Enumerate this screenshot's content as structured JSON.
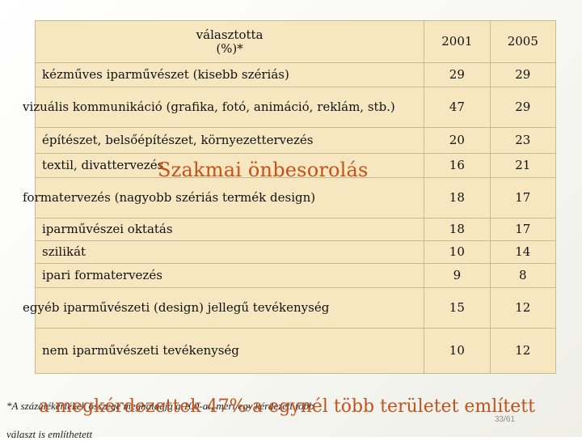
{
  "table": {
    "header": {
      "label_line1": "választotta",
      "label_line2": "(%)*",
      "col1": "2001",
      "col2": "2005"
    },
    "rows": [
      {
        "label": "kézműves iparművészet (kisebb szériás)",
        "v2001": "29",
        "v2005": "29"
      },
      {
        "label": "vizuális kommunikáció (grafika, fotó, animáció, reklám, stb.)",
        "v2001": "47",
        "v2005": "29"
      },
      {
        "label": "építészet, belsőépítészet, környezettervezés",
        "v2001": "20",
        "v2005": "23"
      },
      {
        "label": "textil, divattervezés",
        "v2001": "16",
        "v2005": "21"
      },
      {
        "label": "formatervezés (nagyobb szériás termék design)",
        "v2001": "18",
        "v2005": "17"
      },
      {
        "label": "iparművészei oktatás",
        "v2001": "18",
        "v2005": "17"
      },
      {
        "label": "szilikát",
        "v2001": "10",
        "v2005": "14"
      },
      {
        "label": "ipari formatervezés",
        "v2001": "9",
        "v2005": "8"
      },
      {
        "label": "egyéb iparművészeti (design) jellegű tevékenység",
        "v2001": "15",
        "v2005": "12"
      },
      {
        "label": "nem iparművészeti tevékenység",
        "v2001": "10",
        "v2005": "12"
      }
    ]
  },
  "overlay_title": "Szakmai önbesorolás",
  "footnote": {
    "line1": "*A százalékértékek összege meghaladja a 100-at, mert egy kérdezett több",
    "line2": "választ is említhetett"
  },
  "emphasis": "a megkérdezettek 47%-a egynél több területet említett",
  "page_number": "33/61"
}
